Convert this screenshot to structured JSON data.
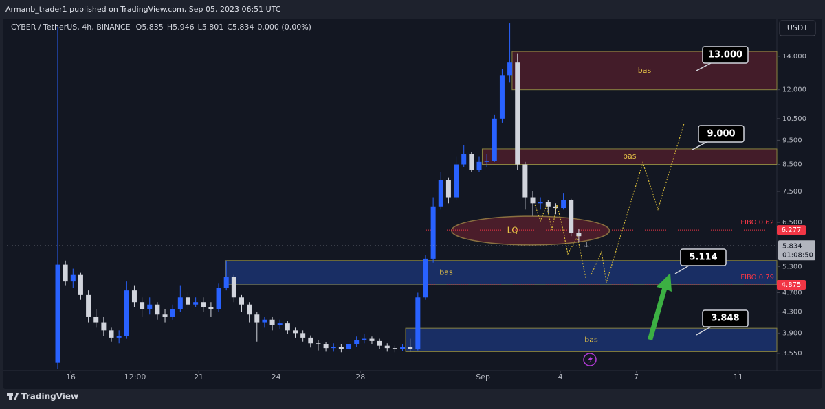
{
  "header": "Armanb_trader1 published on TradingView.com, Sep 05, 2023 06:51 UTC",
  "footer": "TradingView",
  "chart_data": {
    "type": "candlestick",
    "symbol": "CYBER / TetherUS, 4h, BINANCE",
    "ohlc_labels": [
      "O",
      "H",
      "L",
      "C"
    ],
    "change": "0.000 (0.00%)",
    "currency": "USDT",
    "timer": "01:08:50",
    "up_color": "#2962ff",
    "down_color": "#d1d4dc",
    "log_scale": true,
    "categories": [
      null,
      null,
      null,
      null,
      null,
      null,
      null,
      null,
      null,
      null,
      null,
      null,
      null,
      null,
      null,
      null,
      null,
      null,
      null,
      null,
      null,
      null,
      null,
      null,
      null,
      null,
      null,
      null,
      null,
      null,
      null,
      null,
      null,
      null,
      null,
      null,
      null,
      null,
      null,
      null,
      null,
      null,
      null,
      null,
      null,
      null,
      null,
      null,
      null,
      null,
      null,
      null,
      null,
      null,
      null,
      null,
      null,
      null,
      null,
      null,
      null,
      null,
      null,
      null,
      null,
      null,
      null,
      null,
      null,
      null
    ],
    "open": [
      3.4,
      5.35,
      4.95,
      5.1,
      4.65,
      4.2,
      4.1,
      3.95,
      3.82,
      3.85,
      4.75,
      4.5,
      4.35,
      4.45,
      4.25,
      4.2,
      4.35,
      4.6,
      4.45,
      4.5,
      4.4,
      4.35,
      4.8,
      5.05,
      4.6,
      4.45,
      4.25,
      4.1,
      4.15,
      4.05,
      4.08,
      3.95,
      3.9,
      3.82,
      3.72,
      3.7,
      3.64,
      3.66,
      3.62,
      3.7,
      3.78,
      3.8,
      3.76,
      3.68,
      3.64,
      3.63,
      3.66,
      3.62,
      4.6,
      5.5,
      7.0,
      7.9,
      7.3,
      8.5,
      8.9,
      8.3,
      8.6,
      8.65,
      10.5,
      12.8,
      13.6,
      8.5,
      7.3,
      7.1,
      7.15,
      7.0,
      6.95,
      7.2,
      6.2,
      5.835
    ],
    "high": [
      16.0,
      5.45,
      5.25,
      5.15,
      4.75,
      4.35,
      4.2,
      4.0,
      3.95,
      4.95,
      4.85,
      4.6,
      4.6,
      4.5,
      4.35,
      4.45,
      4.85,
      4.7,
      4.6,
      4.6,
      4.5,
      4.9,
      5.45,
      5.1,
      4.65,
      4.5,
      4.3,
      4.2,
      4.2,
      4.15,
      4.12,
      4.0,
      3.95,
      3.86,
      3.78,
      3.74,
      3.72,
      3.7,
      3.76,
      3.84,
      3.88,
      3.84,
      3.8,
      3.72,
      3.68,
      3.7,
      3.8,
      4.7,
      5.6,
      7.3,
      8.2,
      8.0,
      8.8,
      9.3,
      9.0,
      8.8,
      8.9,
      10.7,
      13.2,
      16.3,
      14.2,
      8.6,
      7.5,
      7.3,
      7.2,
      7.1,
      7.45,
      7.25,
      6.3,
      5.946
    ],
    "low": [
      3.31,
      4.85,
      4.8,
      4.55,
      4.1,
      4.0,
      3.85,
      3.75,
      3.72,
      3.8,
      4.4,
      4.2,
      4.25,
      4.15,
      4.1,
      4.15,
      4.3,
      4.35,
      4.4,
      4.3,
      4.2,
      4.3,
      4.75,
      4.5,
      4.3,
      4.1,
      3.75,
      4.0,
      3.95,
      3.98,
      3.88,
      3.82,
      3.75,
      3.65,
      3.6,
      3.58,
      3.58,
      3.57,
      3.6,
      3.66,
      3.72,
      3.7,
      3.62,
      3.58,
      3.57,
      3.59,
      3.58,
      3.6,
      4.55,
      5.4,
      6.9,
      7.1,
      7.2,
      8.4,
      8.2,
      8.2,
      8.4,
      8.6,
      10.3,
      12.4,
      8.3,
      6.9,
      6.7,
      6.9,
      6.8,
      6.75,
      6.9,
      6.1,
      5.95,
      5.801
    ],
    "close": [
      5.35,
      4.95,
      5.1,
      4.65,
      4.2,
      4.1,
      3.95,
      3.82,
      3.85,
      4.75,
      4.5,
      4.35,
      4.45,
      4.25,
      4.2,
      4.35,
      4.6,
      4.45,
      4.5,
      4.4,
      4.35,
      4.8,
      5.05,
      4.6,
      4.45,
      4.25,
      4.1,
      4.15,
      4.05,
      4.08,
      3.95,
      3.9,
      3.82,
      3.72,
      3.7,
      3.64,
      3.66,
      3.62,
      3.7,
      3.78,
      3.8,
      3.76,
      3.68,
      3.64,
      3.63,
      3.66,
      3.62,
      4.6,
      5.5,
      7.0,
      7.9,
      7.3,
      8.5,
      8.9,
      8.3,
      8.6,
      8.65,
      10.5,
      12.8,
      13.6,
      8.5,
      7.3,
      7.1,
      7.15,
      7.0,
      6.95,
      7.2,
      6.2,
      6.1,
      5.834
    ],
    "xlim": [
      -6.64,
      93.85
    ],
    "xticks": [
      {
        "value": 1.7,
        "label": "16"
      },
      {
        "value": 10.1,
        "label": "12:00"
      },
      {
        "value": 18.4,
        "label": "21"
      },
      {
        "value": 28.5,
        "label": "24"
      },
      {
        "value": 39.5,
        "label": "28"
      },
      {
        "value": 55.5,
        "label": "Sep"
      },
      {
        "value": 65.6,
        "label": "4"
      },
      {
        "value": 75.5,
        "label": "7"
      },
      {
        "value": 88.8,
        "label": "11"
      }
    ],
    "ylim": [
      3.28,
      16.51
    ],
    "yticks": [
      {
        "value": 14,
        "label": "14.000"
      },
      {
        "value": 12,
        "label": "12.000"
      },
      {
        "value": 10.5,
        "label": "10.500"
      },
      {
        "value": 9.5,
        "label": "9.500"
      },
      {
        "value": 8.5,
        "label": "8.500"
      },
      {
        "value": 7.5,
        "label": "7.500"
      },
      {
        "value": 6.5,
        "label": "6.500"
      },
      {
        "value": 5.3,
        "label": "5.300"
      },
      {
        "value": 4.7,
        "label": "4.700"
      },
      {
        "value": 4.3,
        "label": "4.300"
      },
      {
        "value": 3.9,
        "label": "3.900"
      },
      {
        "value": 3.55,
        "label": "3.550"
      }
    ],
    "fibo_color": "#f23645",
    "fibo_levels": [
      {
        "name": "FIBO 0.62",
        "value": 6.277
      },
      {
        "name": "FIBO 0.79",
        "value": 4.875
      }
    ],
    "zones": [
      {
        "label": "bas",
        "top": 14.31,
        "bottom": 12.0,
        "start": 59.3,
        "color": "#b2283a"
      },
      {
        "label": "bas",
        "top": 9.13,
        "bottom": 8.5,
        "start": 55.4,
        "color": "#b2283a"
      },
      {
        "label": "bas",
        "top": 5.45,
        "bottom": 4.875,
        "start": 21.9,
        "color": "#2962ff"
      },
      {
        "label": "bas",
        "top": 3.99,
        "bottom": 3.58,
        "start": 45.4,
        "color": "#2962ff"
      }
    ],
    "liquidity": {
      "label": "LQ",
      "top": 6.69,
      "bottom": 5.86,
      "start": 51.4,
      "end": 72.0,
      "color": "#b2283a"
    },
    "callouts": [
      "13.000",
      "9.000",
      "5.114",
      "3.848"
    ]
  }
}
